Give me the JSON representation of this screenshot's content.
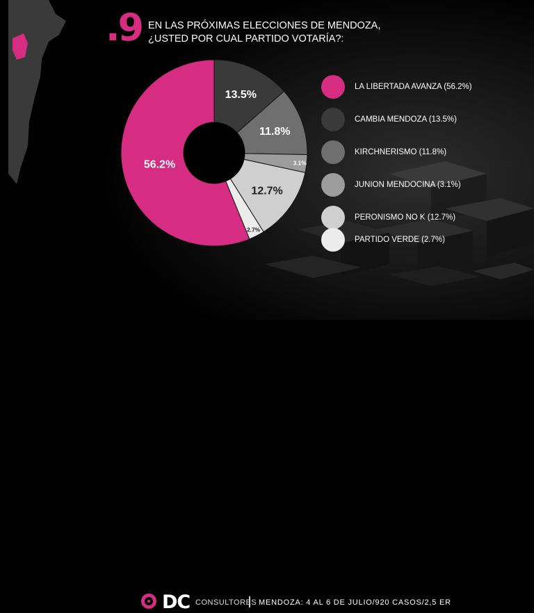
{
  "header": {
    "question_number": ".9",
    "title_line1": "EN LAS PRÓXIMAS ELECCIONES DE MENDOZA,",
    "title_line2": "¿USTED POR CUAL PARTIDO VOTARÍA?:"
  },
  "colors": {
    "accent": "#d62c82",
    "background": "#000000"
  },
  "legend": [
    {
      "label": "LA LIBERTADA AVANZA (56.2%)",
      "color": "#d62c82"
    },
    {
      "label": "CAMBIA MENDOZA (13.5%)",
      "color": "#3a3a3a"
    },
    {
      "label": "KIRCHNERISMO (11.8%)",
      "color": "#6f6f6f"
    },
    {
      "label": "JUNION MENDOCINA (3.1%)",
      "color": "#9c9c9c"
    },
    {
      "label": "PERONISMO NO K (12.7%)",
      "color": "#cfcfcf"
    },
    {
      "label": "PARTIDO VERDE (2.7%)",
      "color": "#ececec"
    }
  ],
  "chart_data": {
    "type": "pie",
    "donut": true,
    "categories": [
      "LA LIBERTADA AVANZA",
      "CAMBIA MENDOZA",
      "KIRCHNERISMO",
      "JUNION MENDOCINA",
      "PERONISMO NO K",
      "PARTIDO VERDE"
    ],
    "values": [
      56.2,
      13.5,
      11.8,
      3.1,
      12.7,
      2.7
    ],
    "data_labels": [
      "56.2%",
      "13.5%",
      "11.8%",
      "3.1%",
      "12.7%",
      "2.7%"
    ],
    "colors": [
      "#d62c82",
      "#3a3a3a",
      "#6f6f6f",
      "#9c9c9c",
      "#cfcfcf",
      "#ececec"
    ],
    "label_colors": [
      "#ffffff",
      "#ffffff",
      "#ffffff",
      "#ffffff",
      "#222222",
      "#222222"
    ],
    "legend_position": "right"
  },
  "footer": {
    "brand": "DC",
    "brand_sub": "CONSULTORES",
    "info": "MENDOZA: 4 AL 6 DE JULIO/920 CASOS/2,5 ER"
  }
}
